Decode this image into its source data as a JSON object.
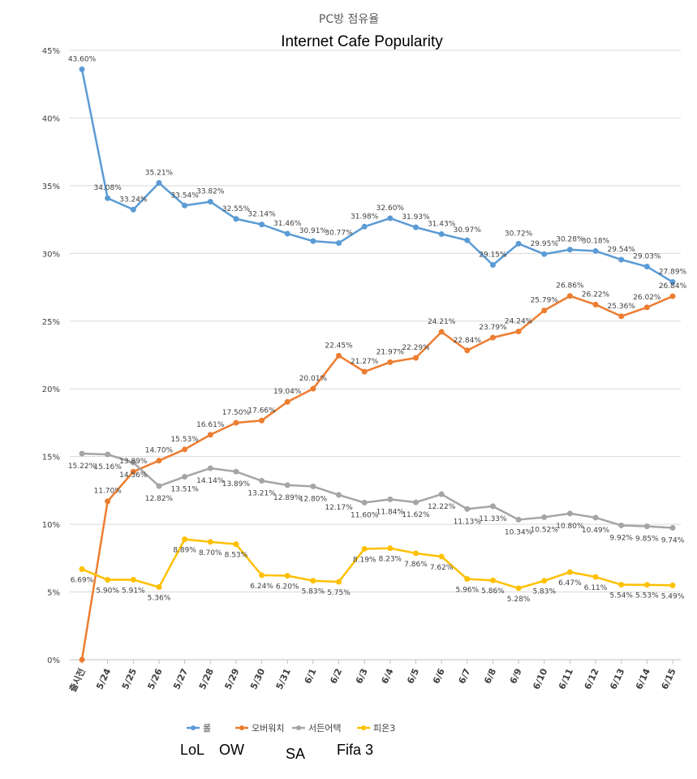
{
  "chart_data": {
    "type": "line",
    "title": "PC방 점유율",
    "subtitle": "Internet Cafe Popularity",
    "xlabel": "",
    "ylabel": "",
    "ylim": [
      0,
      45
    ],
    "yticks": [
      "0%",
      "5%",
      "10%",
      "15%",
      "20%",
      "25%",
      "30%",
      "35%",
      "40%",
      "45%"
    ],
    "grid": true,
    "legend_position": "bottom",
    "categories": [
      "출시전",
      "5/24",
      "5/25",
      "5/26",
      "5/27",
      "5/28",
      "5/29",
      "5/30",
      "5/31",
      "6/1",
      "6/2",
      "6/3",
      "6/4",
      "6/5",
      "6/6",
      "6/7",
      "6/8",
      "6/9",
      "6/10",
      "6/11",
      "6/12",
      "6/13",
      "6/14",
      "6/15"
    ],
    "series": [
      {
        "name": "롤",
        "color": "#5b9bd5",
        "values": [
          43.6,
          34.08,
          33.24,
          35.21,
          33.54,
          33.82,
          32.55,
          32.14,
          31.46,
          30.91,
          30.77,
          31.98,
          32.6,
          31.93,
          31.43,
          30.97,
          29.15,
          30.72,
          29.95,
          30.28,
          30.18,
          29.54,
          29.03,
          27.89
        ],
        "labels": [
          "43.60%",
          "34.08%",
          "33.24%",
          "35.21%",
          "33.54%",
          "33.82%",
          "32.55%",
          "32.14%",
          "31.46%",
          "30.91%",
          "30.77%",
          "31.98%",
          "32.60%",
          "31.93%",
          "31.43%",
          "30.97%",
          "29.15%",
          "30.72%",
          "29.95%",
          "30.28%",
          "30.18%",
          "29.54%",
          "29.03%",
          "27.89%"
        ]
      },
      {
        "name": "오버워치",
        "color": "#ed7d31",
        "values": [
          0,
          11.7,
          13.89,
          14.7,
          15.53,
          16.61,
          17.5,
          17.66,
          19.04,
          20.01,
          22.45,
          21.27,
          21.97,
          22.29,
          24.21,
          22.84,
          23.79,
          24.24,
          25.79,
          26.86,
          26.22,
          25.36,
          26.02,
          26.84
        ],
        "labels": [
          "",
          "11.70%",
          "13.89%",
          "14.70%",
          "15.53%",
          "16.61%",
          "17.50%",
          "17.66%",
          "19.04%",
          "20.01%",
          "22.45%",
          "21.27%",
          "21.97%",
          "22.29%",
          "24.21%",
          "22.84%",
          "23.79%",
          "24.24%",
          "25.79%",
          "26.86%",
          "26.22%",
          "25.36%",
          "26.02%",
          "26.84%"
        ]
      },
      {
        "name": "서든어택",
        "color": "#a5a5a5",
        "values": [
          15.22,
          15.16,
          14.56,
          12.82,
          13.51,
          14.14,
          13.89,
          13.21,
          12.89,
          12.8,
          12.17,
          11.6,
          11.84,
          11.62,
          12.22,
          11.13,
          11.33,
          10.34,
          10.52,
          10.8,
          10.49,
          9.92,
          9.85,
          9.74
        ],
        "labels": [
          "15.22%",
          "15.16%",
          "14.56%",
          "12.82%",
          "13.51%",
          "14.14%",
          "13.89%",
          "13.21%",
          "12.89%",
          "12.80%",
          "12.17%",
          "11.60%",
          "11.84%",
          "11.62%",
          "12.22%",
          "11.13%",
          "11.33%",
          "10.34%",
          "10.52%",
          "10.80%",
          "10.49%",
          "9.92%",
          "9.85%",
          "9.74%"
        ]
      },
      {
        "name": "피온3",
        "color": "#ffc000",
        "values": [
          6.69,
          5.9,
          5.91,
          5.36,
          8.89,
          8.7,
          8.53,
          6.24,
          6.2,
          5.83,
          5.75,
          8.19,
          8.23,
          7.86,
          7.62,
          5.96,
          5.86,
          5.28,
          5.83,
          6.47,
          6.11,
          5.54,
          5.53,
          5.49
        ],
        "labels": [
          "6.69%",
          "5.90%",
          "5.91%",
          "5.36%",
          "8.89%",
          "8.70%",
          "8.53%",
          "6.24%",
          "6.20%",
          "5.83%",
          "5.75%",
          "8.19%",
          "8.23%",
          "7.86%",
          "7.62%",
          "5.96%",
          "5.86%",
          "5.28%",
          "5.83%",
          "6.47%",
          "6.11%",
          "5.54%",
          "5.53%",
          "5.49%"
        ]
      }
    ],
    "annotations": [
      "LoL",
      "OW",
      "SA",
      "Fifa 3"
    ]
  }
}
